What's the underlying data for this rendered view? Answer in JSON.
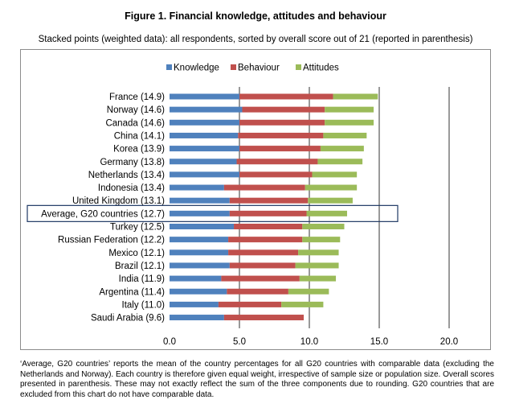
{
  "figure": {
    "title": "Figure 1.  Financial knowledge, attitudes and behaviour",
    "subtitle": "Stacked points (weighted data): all respondents, sorted by overall score out of 21 (reported in parenthesis)",
    "footnote": "‘Average, G20 countries’ reports the mean of the country percentages for all G20 countries with comparable data (excluding the Netherlands and Norway). Each country is therefore given equal weight, irrespective of sample size or population size. Overall scores presented in parenthesis. These may not exactly reflect the sum of the three components due to rounding. G20 countries that are excluded from this chart do not have comparable data."
  },
  "colors": {
    "knowledge": "#4f81bd",
    "behaviour": "#c0504d",
    "attitudes": "#9bbb59",
    "grid": "#000000",
    "highlight_box": "#1f3864"
  },
  "chart_data": {
    "type": "bar",
    "orientation": "horizontal",
    "stacked": true,
    "categories": [
      "France (14.9)",
      "Norway (14.6)",
      "Canada (14.6)",
      "China (14.1)",
      "Korea (13.9)",
      "Germany (13.8)",
      "Netherlands (13.4)",
      "Indonesia (13.4)",
      "United Kingdom (13.1)",
      "Average, G20 countries (12.7)",
      "Turkey (12.5)",
      "Russian Federation (12.2)",
      "Mexico (12.1)",
      "Brazil (12.1)",
      "India (11.9)",
      "Argentina (11.4)",
      "Italy (11.0)",
      "Saudi Arabia (9.6)"
    ],
    "highlighted_category": "Average, G20 countries (12.7)",
    "series": [
      {
        "name": "Knowledge",
        "values": [
          5.0,
          5.2,
          5.0,
          4.9,
          5.0,
          4.8,
          5.0,
          3.9,
          4.3,
          4.3,
          4.6,
          4.2,
          4.2,
          4.3,
          3.7,
          4.1,
          3.5,
          3.9
        ]
      },
      {
        "name": "Behaviour",
        "values": [
          6.7,
          5.9,
          6.1,
          6.1,
          5.8,
          5.8,
          5.2,
          5.8,
          5.6,
          5.5,
          4.9,
          5.3,
          5.0,
          4.7,
          5.6,
          4.4,
          4.5,
          5.7
        ]
      },
      {
        "name": "Attitudes",
        "values": [
          3.2,
          3.5,
          3.5,
          3.1,
          3.1,
          3.2,
          3.2,
          3.7,
          3.2,
          2.9,
          3.0,
          2.7,
          2.9,
          3.1,
          2.6,
          2.9,
          3.0,
          0.0
        ]
      }
    ],
    "xlim": [
      0,
      20
    ],
    "xticks": [
      "0.0",
      "5.0",
      "10.0",
      "15.0",
      "20.0"
    ],
    "xtick_values": [
      0,
      5,
      10,
      15,
      20
    ],
    "grid": "vertical",
    "legend_position": "top"
  }
}
